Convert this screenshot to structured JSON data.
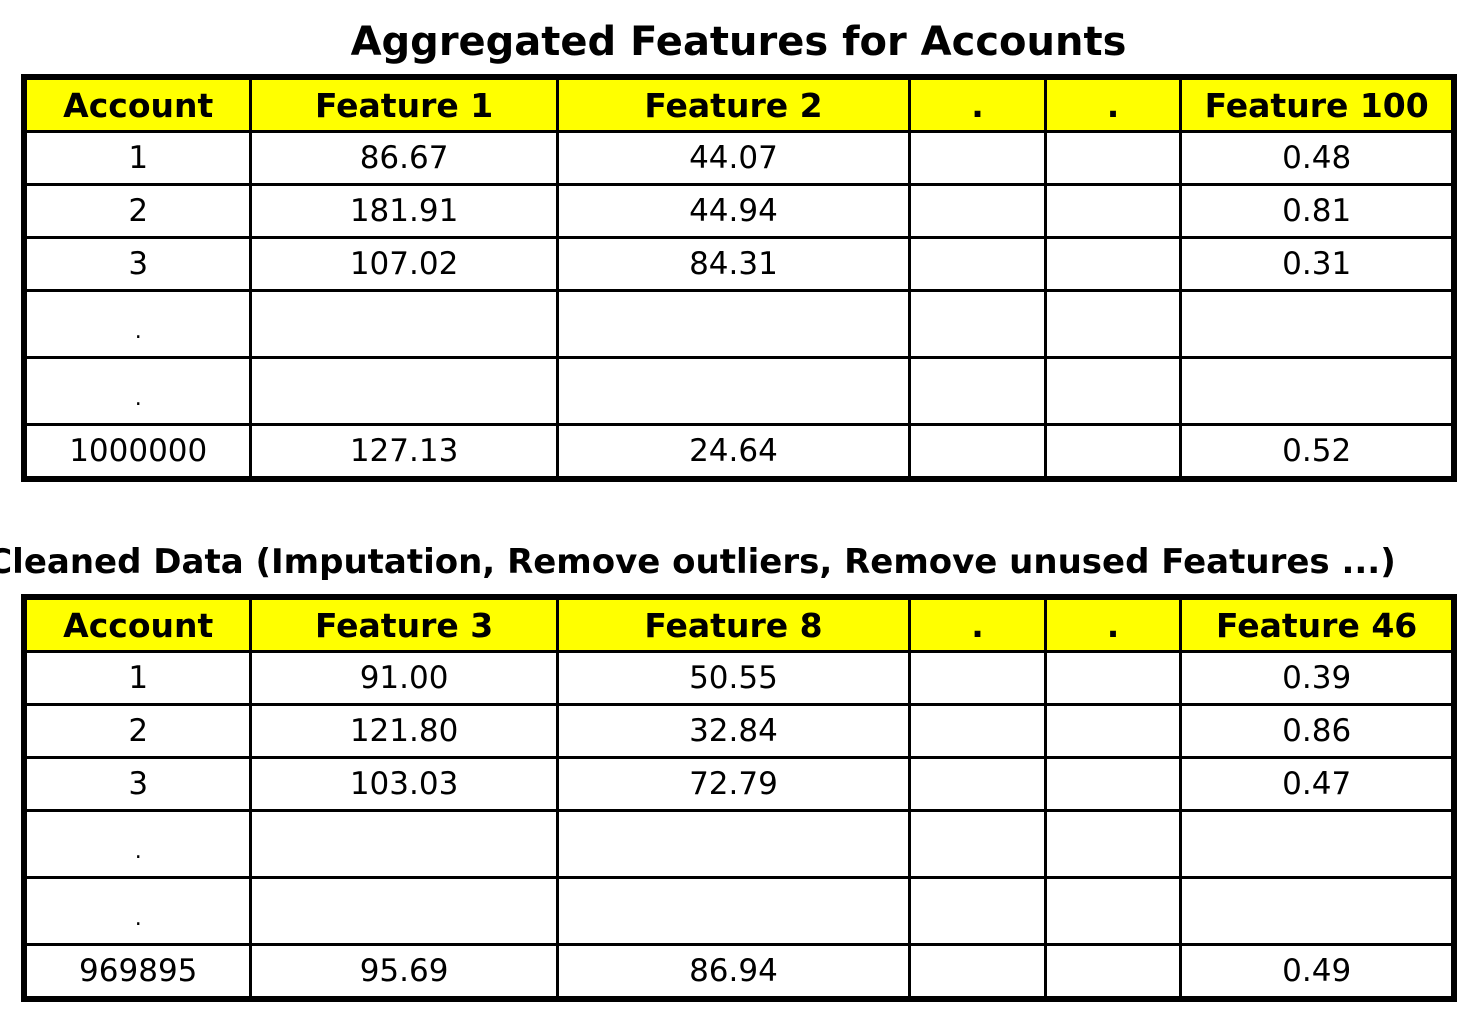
{
  "table1": {
    "title": "Aggregated Features for Accounts",
    "headers": [
      "Account",
      "Feature 1",
      "Feature 2",
      ".",
      ".",
      "Feature 100"
    ],
    "rows": [
      [
        "1",
        "86.67",
        "44.07",
        "",
        "",
        "0.48"
      ],
      [
        "2",
        "181.91",
        "44.94",
        "",
        "",
        "0.81"
      ],
      [
        "3",
        "107.02",
        "84.31",
        "",
        "",
        "0.31"
      ],
      [
        ".",
        "",
        "",
        "",
        "",
        ""
      ],
      [
        ".",
        "",
        "",
        "",
        "",
        ""
      ],
      [
        "1000000",
        "127.13",
        "24.64",
        "",
        "",
        "0.52"
      ]
    ]
  },
  "table2": {
    "title": "Cleaned Data (Imputation, Remove outliers, Remove unused Features ...)",
    "headers": [
      "Account",
      "Feature 3",
      "Feature 8",
      ".",
      ".",
      "Feature 46"
    ],
    "rows": [
      [
        "1",
        "91.00",
        "50.55",
        "",
        "",
        "0.39"
      ],
      [
        "2",
        "121.80",
        "32.84",
        "",
        "",
        "0.86"
      ],
      [
        "3",
        "103.03",
        "72.79",
        "",
        "",
        "0.47"
      ],
      [
        ".",
        "",
        "",
        "",
        "",
        ""
      ],
      [
        ".",
        "",
        "",
        "",
        "",
        ""
      ],
      [
        "969895",
        "95.69",
        "86.94",
        "",
        "",
        "0.49"
      ]
    ]
  },
  "colors": {
    "header_background": "#ffff00",
    "border": "#000000"
  }
}
